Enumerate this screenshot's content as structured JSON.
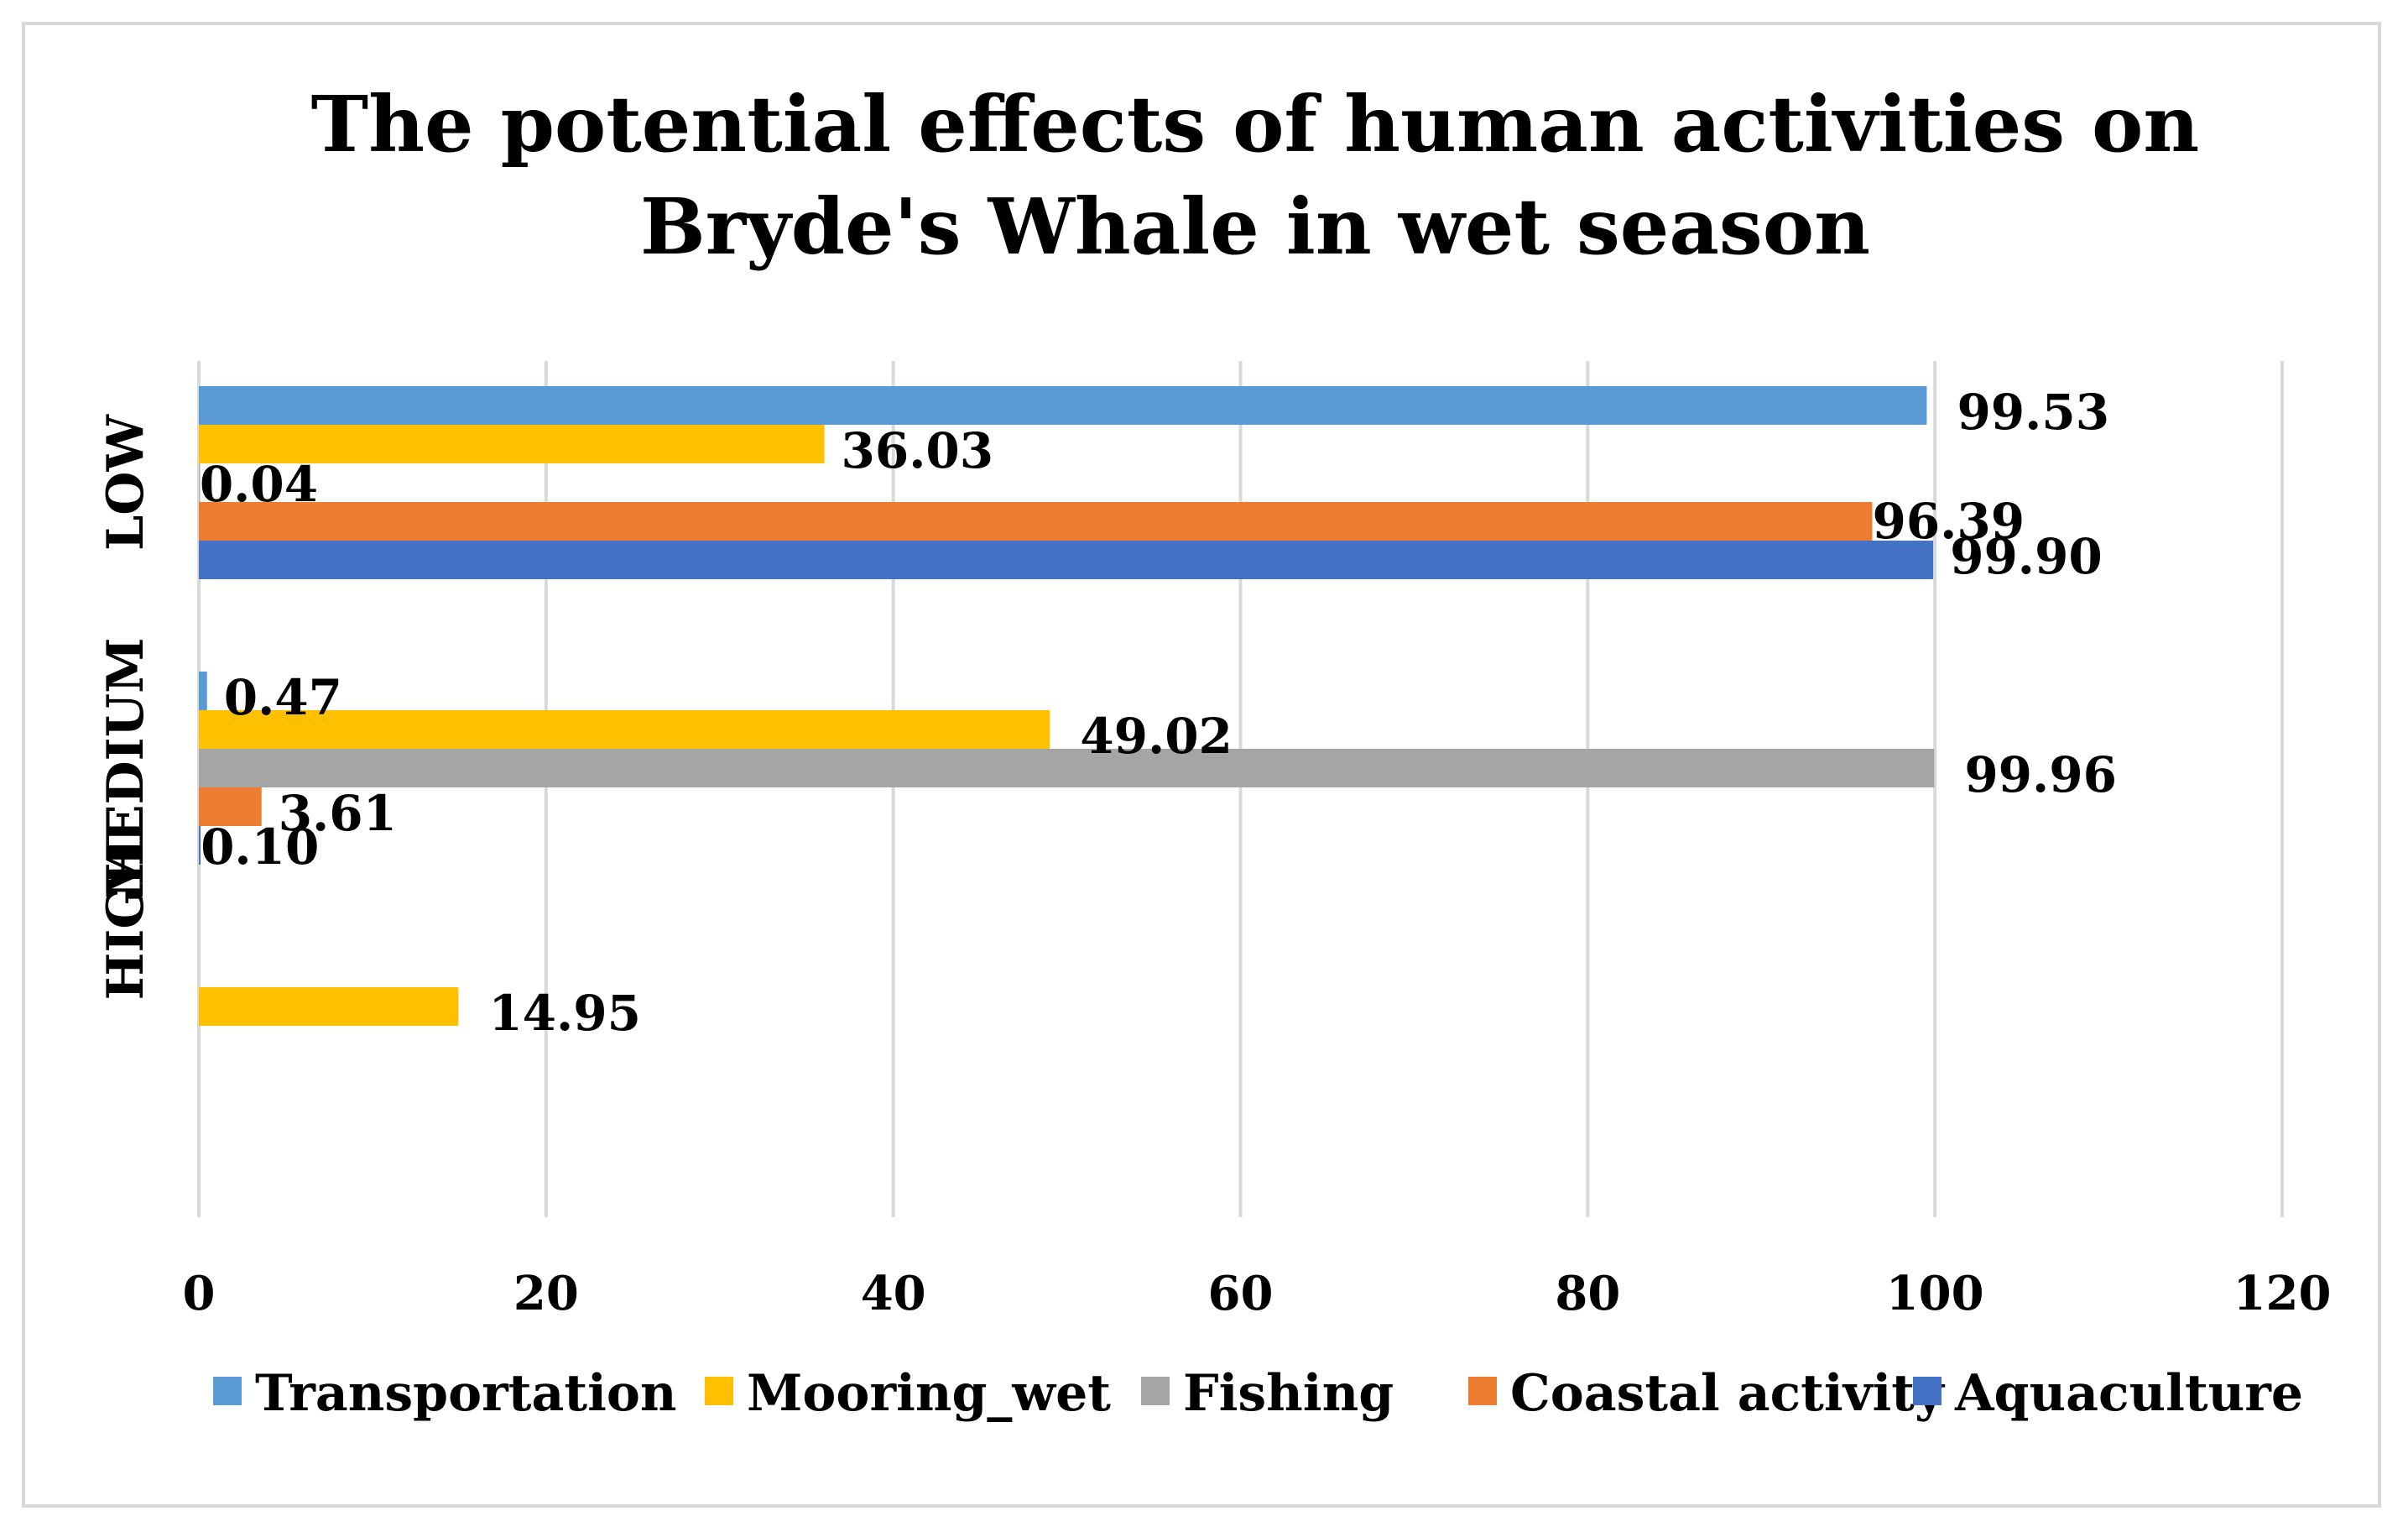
{
  "chart_data": {
    "type": "bar",
    "orientation": "horizontal",
    "title": [
      "The potential effects of human activities on",
      "Bryde's Whale in wet season"
    ],
    "categories": [
      "LOW",
      "MEDIUM",
      "HIGH"
    ],
    "series": [
      {
        "name": "Transportation",
        "color": "#5b9bd5",
        "values": [
          99.53,
          0.47,
          null
        ],
        "labels": [
          "99.53",
          "0.47",
          null
        ]
      },
      {
        "name": "Mooring_wet",
        "color": "#ffc000",
        "values": [
          36.03,
          49.02,
          14.95
        ],
        "labels": [
          "36.03",
          "49.02",
          "14.95"
        ]
      },
      {
        "name": "Fishing",
        "color": "#a5a5a5",
        "values": [
          0.04,
          99.96,
          null
        ],
        "labels": [
          "0.04",
          "99.96",
          null
        ]
      },
      {
        "name": "Coastal activity",
        "color": "#ed7d31",
        "values": [
          96.39,
          3.61,
          null
        ],
        "labels": [
          "96.39",
          "3.61",
          null
        ]
      },
      {
        "name": "Aquaculture",
        "color": "#4472c4",
        "values": [
          99.9,
          0.1,
          null
        ],
        "labels": [
          "99.90",
          "0.10",
          null
        ]
      }
    ],
    "xlim": [
      0,
      120
    ],
    "xticks": [
      "0",
      "20",
      "40",
      "60",
      "80",
      "100",
      "120"
    ],
    "grid": true,
    "legend_position": "bottom"
  }
}
